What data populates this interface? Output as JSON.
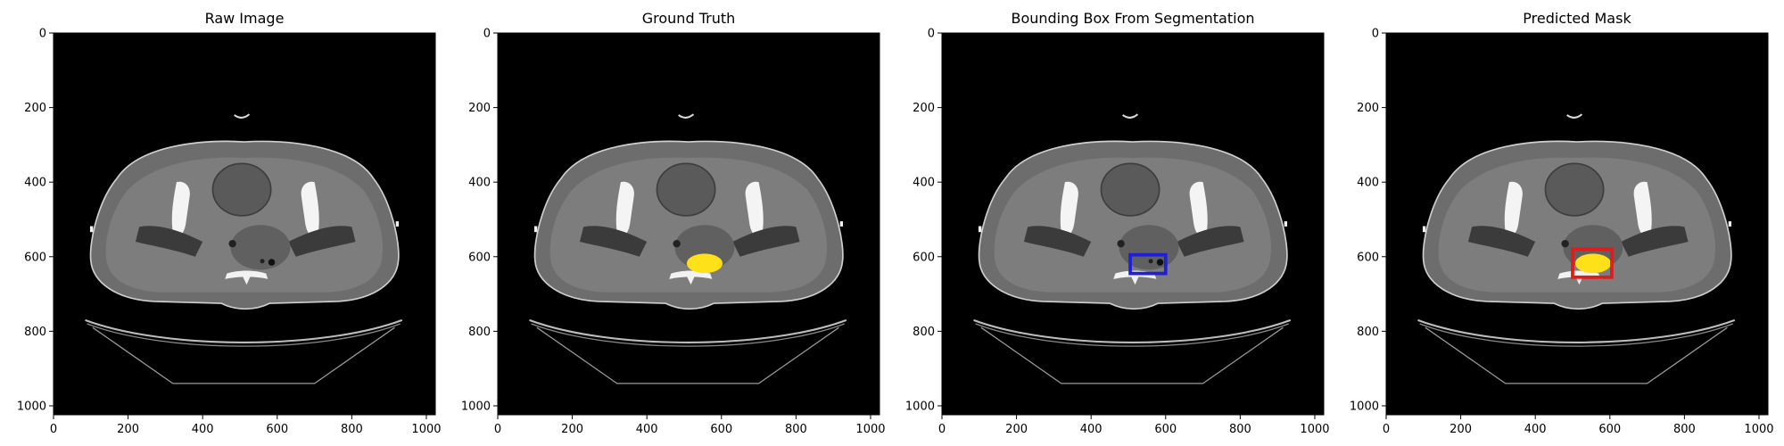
{
  "figure": {
    "panels": [
      {
        "title": "Raw Image",
        "overlay": "none"
      },
      {
        "title": "Ground Truth",
        "overlay": "mask"
      },
      {
        "title": "Bounding Box From Segmentation",
        "overlay": "box",
        "box": {
          "x0": 505,
          "y0": 595,
          "x1": 600,
          "y1": 645
        },
        "box_color": "#1f1fd8"
      },
      {
        "title": "Predicted Mask",
        "overlay": "mask+box",
        "box": {
          "x0": 500,
          "y0": 580,
          "x1": 605,
          "y1": 655
        },
        "box_color": "#e01b1b"
      }
    ],
    "mask_color": "#ffe11a",
    "axes": {
      "xlim": [
        0,
        1024
      ],
      "ylim": [
        1024,
        0
      ],
      "x_ticks": [
        "0",
        "200",
        "400",
        "600",
        "800",
        "1000"
      ],
      "y_ticks": [
        "0",
        "200",
        "400",
        "600",
        "800",
        "1000"
      ]
    }
  }
}
